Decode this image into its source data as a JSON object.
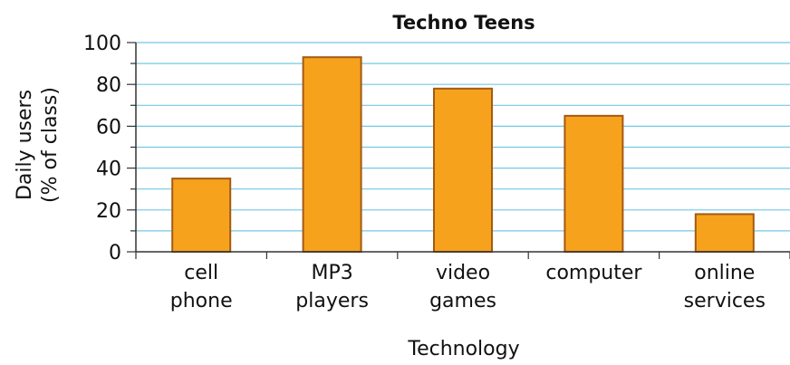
{
  "chart_data": {
    "type": "bar",
    "title": "Techno Teens",
    "xlabel": "Technology",
    "ylabel_lines": [
      "Daily users",
      "(% of class)"
    ],
    "categories": [
      [
        "cell",
        "phone"
      ],
      [
        "MP3",
        "players"
      ],
      [
        "video",
        "games"
      ],
      [
        "computer"
      ],
      [
        "online",
        "services"
      ]
    ],
    "values": [
      35,
      93,
      78,
      65,
      18
    ],
    "ylim": [
      0,
      100
    ],
    "yticks": [
      "0",
      "20",
      "40",
      "60",
      "80",
      "100"
    ],
    "grid": true,
    "colors": {
      "bar_fill": "#F7A21D",
      "bar_stroke": "#A45A12",
      "grid": "#74C8E6",
      "axis": "#333333"
    }
  }
}
